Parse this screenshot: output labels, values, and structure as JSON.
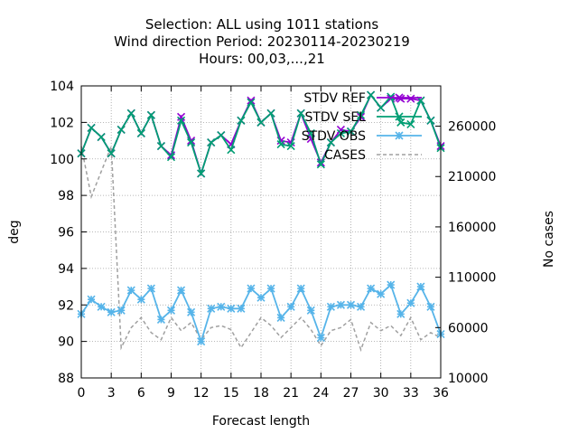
{
  "chart_data": {
    "type": "line",
    "title_lines": [
      "Selection: ALL using  1011 stations",
      "Wind direction   Period: 20230114-20230219",
      "Hours:  00,03,...,21"
    ],
    "xlabel": "Forecast length",
    "ylabel": "deg",
    "y2label": "No cases",
    "xlim": [
      0,
      36
    ],
    "ylim": [
      88,
      104
    ],
    "y2lim": [
      10000,
      300000
    ],
    "xticks": [
      0,
      3,
      6,
      9,
      12,
      15,
      18,
      21,
      24,
      27,
      30,
      33,
      36
    ],
    "yticks": [
      88,
      90,
      92,
      94,
      96,
      98,
      100,
      102,
      104
    ],
    "y2ticks": [
      10000,
      60000,
      110000,
      160000,
      210000,
      260000
    ],
    "grid": true,
    "legend_position": "top-right",
    "series": [
      {
        "name": "STDV REF",
        "color": "#9400d3",
        "axis": "y",
        "marker": "x",
        "x": [
          0,
          1,
          2,
          3,
          4,
          5,
          6,
          7,
          8,
          9,
          10,
          11,
          12,
          13,
          14,
          15,
          16,
          17,
          18,
          19,
          20,
          21,
          22,
          23,
          24,
          25,
          26,
          27,
          28,
          29,
          30,
          31,
          32,
          33,
          34,
          35,
          36
        ],
        "values": [
          100.3,
          101.7,
          101.2,
          100.3,
          101.6,
          102.5,
          101.4,
          102.4,
          100.7,
          100.2,
          102.3,
          101.0,
          99.2,
          100.9,
          101.3,
          100.8,
          102.1,
          103.2,
          102.0,
          102.5,
          101.0,
          100.9,
          102.5,
          101.1,
          99.8,
          100.9,
          101.6,
          101.5,
          102.3,
          103.5,
          102.8,
          103.3,
          103.3,
          103.3,
          103.2,
          102.1,
          100.7
        ]
      },
      {
        "name": "STDV SEL",
        "color": "#009e73",
        "axis": "y",
        "marker": "x",
        "x": [
          0,
          1,
          2,
          3,
          4,
          5,
          6,
          7,
          8,
          9,
          10,
          11,
          12,
          13,
          14,
          15,
          16,
          17,
          18,
          19,
          20,
          21,
          22,
          23,
          24,
          25,
          26,
          27,
          28,
          29,
          30,
          31,
          32,
          33,
          34,
          35,
          36
        ],
        "values": [
          100.3,
          101.7,
          101.2,
          100.3,
          101.6,
          102.5,
          101.4,
          102.4,
          100.7,
          100.1,
          102.1,
          100.9,
          99.2,
          100.9,
          101.3,
          100.5,
          102.1,
          103.1,
          102.0,
          102.5,
          100.8,
          100.7,
          102.5,
          101.4,
          99.7,
          100.9,
          101.4,
          101.5,
          102.4,
          103.5,
          102.8,
          103.4,
          102.0,
          101.9,
          103.2,
          102.1,
          100.6
        ]
      },
      {
        "name": "STDV OBS",
        "color": "#56b4e9",
        "axis": "y",
        "marker": "asterisk",
        "x": [
          0,
          1,
          2,
          3,
          4,
          5,
          6,
          7,
          8,
          9,
          10,
          11,
          12,
          13,
          14,
          15,
          16,
          17,
          18,
          19,
          20,
          21,
          22,
          23,
          24,
          25,
          26,
          27,
          28,
          29,
          30,
          31,
          32,
          33,
          34,
          35,
          36
        ],
        "values": [
          91.5,
          92.3,
          91.9,
          91.6,
          91.7,
          92.8,
          92.3,
          92.9,
          91.2,
          91.7,
          92.8,
          91.6,
          90.0,
          91.8,
          91.9,
          91.8,
          91.8,
          92.9,
          92.4,
          92.9,
          91.3,
          91.9,
          92.9,
          91.7,
          90.2,
          91.9,
          92.0,
          92.0,
          91.9,
          92.9,
          92.6,
          93.1,
          91.5,
          92.1,
          93.0,
          91.9,
          90.4
        ]
      },
      {
        "name": "CASES",
        "color": "#a0a0a0",
        "axis": "y2",
        "marker": "none",
        "dashed": true,
        "x": [
          0,
          1,
          2,
          3,
          4,
          5,
          6,
          7,
          8,
          9,
          10,
          11,
          12,
          13,
          14,
          15,
          16,
          17,
          18,
          19,
          20,
          21,
          22,
          23,
          24,
          25,
          26,
          27,
          28,
          29,
          30,
          31,
          32,
          33,
          34,
          35,
          36
        ],
        "values": [
          240000,
          190000,
          215000,
          240000,
          40000,
          60000,
          70000,
          55000,
          48000,
          70000,
          57000,
          65000,
          48000,
          60000,
          62000,
          58000,
          40000,
          55000,
          70000,
          62000,
          50000,
          60000,
          70000,
          58000,
          42000,
          57000,
          60000,
          68000,
          38000,
          65000,
          57000,
          62000,
          52000,
          70000,
          48000,
          55000,
          50000
        ]
      }
    ]
  }
}
